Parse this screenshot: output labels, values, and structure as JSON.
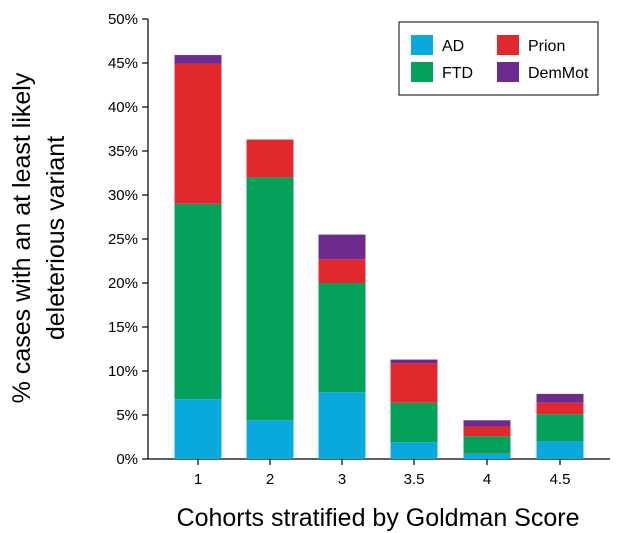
{
  "chart_data": {
    "type": "bar",
    "stacked": true,
    "categories": [
      "1",
      "2",
      "3",
      "3.5",
      "4",
      "4.5"
    ],
    "series": [
      {
        "name": "AD",
        "color": "#0aa9dd",
        "values": [
          6.8,
          4.4,
          7.6,
          1.9,
          0.6,
          2.0
        ]
      },
      {
        "name": "FTD",
        "color": "#05a05a",
        "values": [
          22.2,
          27.6,
          12.4,
          4.5,
          2.0,
          3.1
        ]
      },
      {
        "name": "Prion",
        "color": "#e1282c",
        "values": [
          15.9,
          4.3,
          2.7,
          4.5,
          1.1,
          1.3
        ]
      },
      {
        "name": "DemMot",
        "color": "#6d2a8f",
        "values": [
          1.0,
          0.0,
          2.8,
          0.4,
          0.7,
          1.0
        ]
      }
    ],
    "xlabel": "Cohorts stratified by Goldman Score",
    "ylabel_lines": [
      "% cases with an at least likely",
      "deleterious variant"
    ],
    "ylim": [
      0,
      50
    ],
    "yticks": [
      0,
      5,
      10,
      15,
      20,
      25,
      30,
      35,
      40,
      45,
      50
    ],
    "ytick_labels": [
      "0%",
      "5%",
      "10%",
      "15%",
      "20%",
      "25%",
      "30%",
      "35%",
      "40%",
      "45%",
      "50%"
    ],
    "grid": false,
    "legend_position": "top-right"
  }
}
